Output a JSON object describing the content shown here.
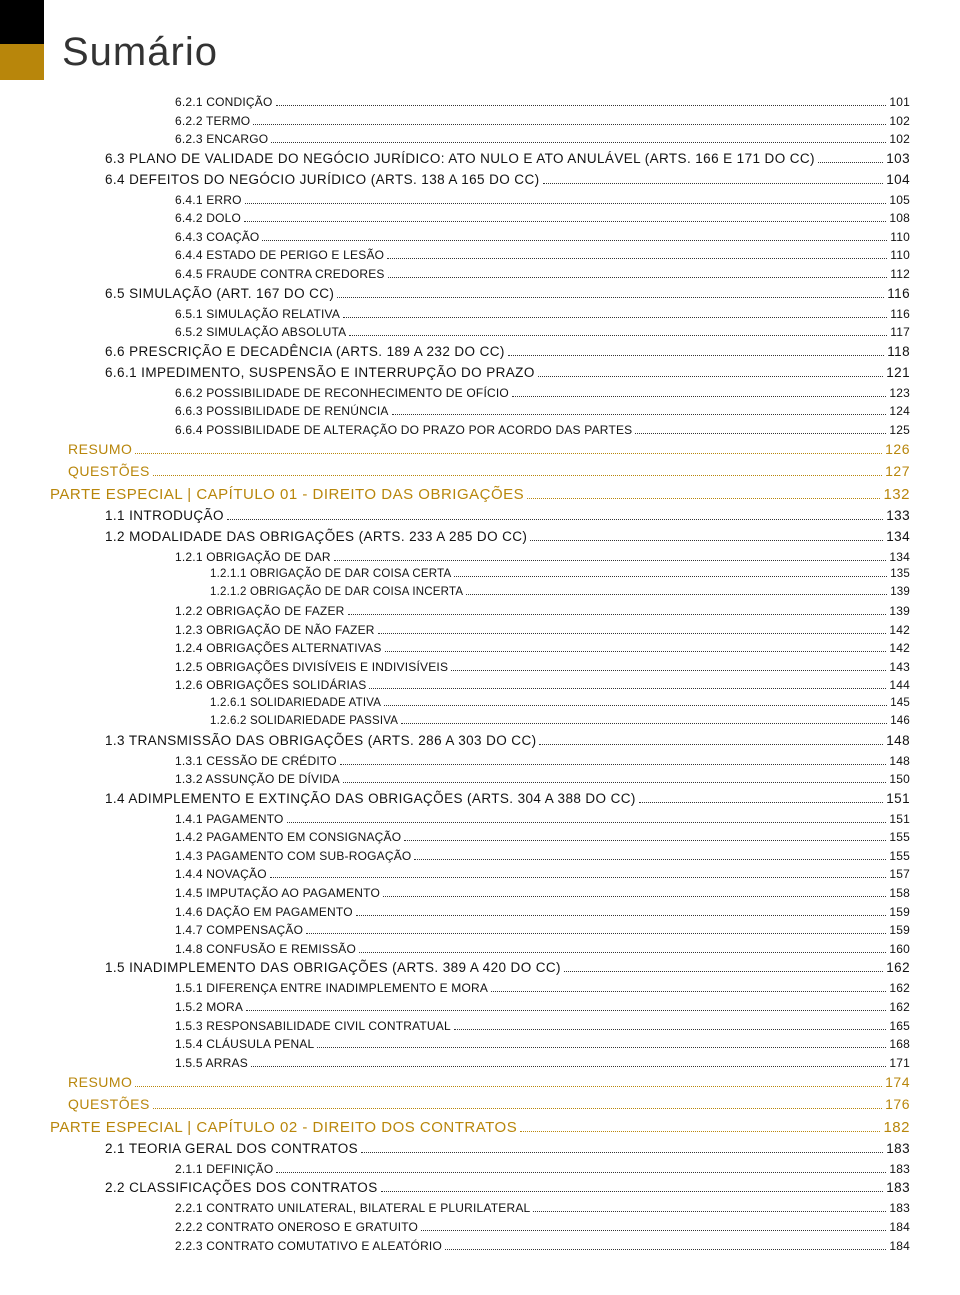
{
  "title": "Sumário",
  "colors": {
    "accent": "#b8860b",
    "text": "#111111",
    "background": "#ffffff"
  },
  "entries": [
    {
      "level": 4,
      "label": "6.2.1 CONDIÇÃO",
      "page": "101"
    },
    {
      "level": 4,
      "label": "6.2.2 TERMO",
      "page": "102"
    },
    {
      "level": 4,
      "label": "6.2.3 ENCARGO",
      "page": "102"
    },
    {
      "level": 2,
      "label": "6.3 PLANO DE VALIDADE DO NEGÓCIO JURÍDICO: ATO NULO E ATO ANULÁVEL (ARTS. 166 E 171 DO CC)",
      "page": "103"
    },
    {
      "level": 2,
      "label": "6.4 DEFEITOS DO NEGÓCIO JURÍDICO (ARTS. 138 A 165 DO CC)",
      "page": "104"
    },
    {
      "level": 4,
      "label": "6.4.1 ERRO",
      "page": "105"
    },
    {
      "level": 4,
      "label": "6.4.2 DOLO",
      "page": "108"
    },
    {
      "level": 4,
      "label": "6.4.3 COAÇÃO",
      "page": "110"
    },
    {
      "level": 4,
      "label": "6.4.4 ESTADO DE PERIGO E LESÃO",
      "page": "110"
    },
    {
      "level": 4,
      "label": "6.4.5 FRAUDE CONTRA CREDORES",
      "page": "112"
    },
    {
      "level": 2,
      "label": "6.5 SIMULAÇÃO (ART. 167 DO CC)",
      "page": "116"
    },
    {
      "level": 4,
      "label": "6.5.1 SIMULAÇÃO RELATIVA",
      "page": "116"
    },
    {
      "level": 4,
      "label": "6.5.2 SIMULAÇÃO ABSOLUTA",
      "page": "117"
    },
    {
      "level": 2,
      "label": "6.6 PRESCRIÇÃO E DECADÊNCIA (ARTS. 189 A 232 DO CC)",
      "page": "118"
    },
    {
      "level": 2,
      "label": "6.6.1 IMPEDIMENTO, SUSPENSÃO E INTERRUPÇÃO DO PRAZO",
      "page": "121"
    },
    {
      "level": 4,
      "label": "6.6.2 POSSIBILIDADE DE RECONHECIMENTO DE OFÍCIO",
      "page": "123"
    },
    {
      "level": 4,
      "label": "6.6.3 POSSIBILIDADE DE RENÚNCIA",
      "page": "124"
    },
    {
      "level": 4,
      "label": "6.6.4 POSSIBILIDADE DE ALTERAÇÃO DO PRAZO POR ACORDO DAS PARTES",
      "page": "125"
    },
    {
      "level": 1,
      "label": "RESUMO",
      "page": "126"
    },
    {
      "level": 1,
      "label": "QUESTÕES",
      "page": "127"
    },
    {
      "level": 0,
      "label": "PARTE ESPECIAL | CAPÍTULO 01 - DIREITO DAS OBRIGAÇÕES",
      "page": "132"
    },
    {
      "level": 2,
      "label": "1.1 INTRODUÇÃO",
      "page": "133"
    },
    {
      "level": 2,
      "label": "1.2 MODALIDADE DAS OBRIGAÇÕES (ARTS. 233 A 285 DO CC)",
      "page": "134"
    },
    {
      "level": 4,
      "label": "1.2.1 OBRIGAÇÃO DE DAR",
      "page": "134"
    },
    {
      "level": 5,
      "label": "1.2.1.1 OBRIGAÇÃO DE DAR COISA CERTA",
      "page": "135"
    },
    {
      "level": 5,
      "label": "1.2.1.2 OBRIGAÇÃO DE DAR COISA INCERTA",
      "page": "139"
    },
    {
      "level": 4,
      "label": "1.2.2 OBRIGAÇÃO DE FAZER",
      "page": "139"
    },
    {
      "level": 4,
      "label": "1.2.3 OBRIGAÇÃO DE NÃO FAZER",
      "page": "142"
    },
    {
      "level": 4,
      "label": "1.2.4 OBRIGAÇÕES ALTERNATIVAS",
      "page": "142"
    },
    {
      "level": 4,
      "label": "1.2.5 OBRIGAÇÕES DIVISÍVEIS E INDIVISÍVEIS",
      "page": "143"
    },
    {
      "level": 4,
      "label": "1.2.6 OBRIGAÇÕES SOLIDÁRIAS",
      "page": "144"
    },
    {
      "level": 5,
      "label": "1.2.6.1 SOLIDARIEDADE ATIVA",
      "page": "145"
    },
    {
      "level": 5,
      "label": "1.2.6.2 SOLIDARIEDADE PASSIVA",
      "page": "146"
    },
    {
      "level": 2,
      "label": "1.3 TRANSMISSÃO DAS OBRIGAÇÕES (ARTS. 286 A 303 DO CC)",
      "page": "148"
    },
    {
      "level": 4,
      "label": "1.3.1 CESSÃO DE CRÉDITO",
      "page": "148"
    },
    {
      "level": 4,
      "label": "1.3.2 ASSUNÇÃO DE DÍVIDA",
      "page": "150"
    },
    {
      "level": 2,
      "label": "1.4 ADIMPLEMENTO E EXTINÇÃO DAS OBRIGAÇÕES (ARTS. 304 A 388 DO CC)",
      "page": "151"
    },
    {
      "level": 4,
      "label": "1.4.1 PAGAMENTO",
      "page": "151"
    },
    {
      "level": 4,
      "label": "1.4.2 PAGAMENTO EM CONSIGNAÇÃO",
      "page": "155"
    },
    {
      "level": 4,
      "label": "1.4.3 PAGAMENTO COM SUB-ROGAÇÃO",
      "page": "155"
    },
    {
      "level": 4,
      "label": "1.4.4 NOVAÇÃO",
      "page": "157"
    },
    {
      "level": 4,
      "label": "1.4.5 IMPUTAÇÃO AO PAGAMENTO",
      "page": "158"
    },
    {
      "level": 4,
      "label": "1.4.6 DAÇÃO EM PAGAMENTO",
      "page": "159"
    },
    {
      "level": 4,
      "label": "1.4.7 COMPENSAÇÃO",
      "page": "159"
    },
    {
      "level": 4,
      "label": "1.4.8 CONFUSÃO E REMISSÃO",
      "page": "160"
    },
    {
      "level": 2,
      "label": "1.5 INADIMPLEMENTO DAS OBRIGAÇÕES (ARTS. 389 A 420 DO CC)",
      "page": "162"
    },
    {
      "level": 4,
      "label": "1.5.1 DIFERENÇA ENTRE INADIMPLEMENTO E MORA",
      "page": "162"
    },
    {
      "level": 4,
      "label": "1.5.2 MORA",
      "page": "162"
    },
    {
      "level": 4,
      "label": "1.5.3 RESPONSABILIDADE CIVIL CONTRATUAL",
      "page": "165"
    },
    {
      "level": 4,
      "label": "1.5.4 CLÁUSULA PENAL",
      "page": "168"
    },
    {
      "level": 4,
      "label": "1.5.5 ARRAS",
      "page": "171"
    },
    {
      "level": 1,
      "label": "RESUMO",
      "page": "174"
    },
    {
      "level": 1,
      "label": "QUESTÕES",
      "page": "176"
    },
    {
      "level": 0,
      "label": "PARTE ESPECIAL | CAPÍTULO 02 - DIREITO DOS CONTRATOS",
      "page": "182"
    },
    {
      "level": 2,
      "label": "2.1 TEORIA GERAL DOS CONTRATOS",
      "page": "183"
    },
    {
      "level": 4,
      "label": "2.1.1 DEFINIÇÃO",
      "page": "183"
    },
    {
      "level": 2,
      "label": "2.2 CLASSIFICAÇÕES DOS CONTRATOS",
      "page": "183"
    },
    {
      "level": 4,
      "label": "2.2.1 CONTRATO UNILATERAL, BILATERAL E PLURILATERAL",
      "page": "183"
    },
    {
      "level": 4,
      "label": "2.2.2 CONTRATO ONEROSO E GRATUITO",
      "page": "184"
    },
    {
      "level": 4,
      "label": "2.2.3 CONTRATO COMUTATIVO E ALEATÓRIO",
      "page": "184"
    }
  ]
}
